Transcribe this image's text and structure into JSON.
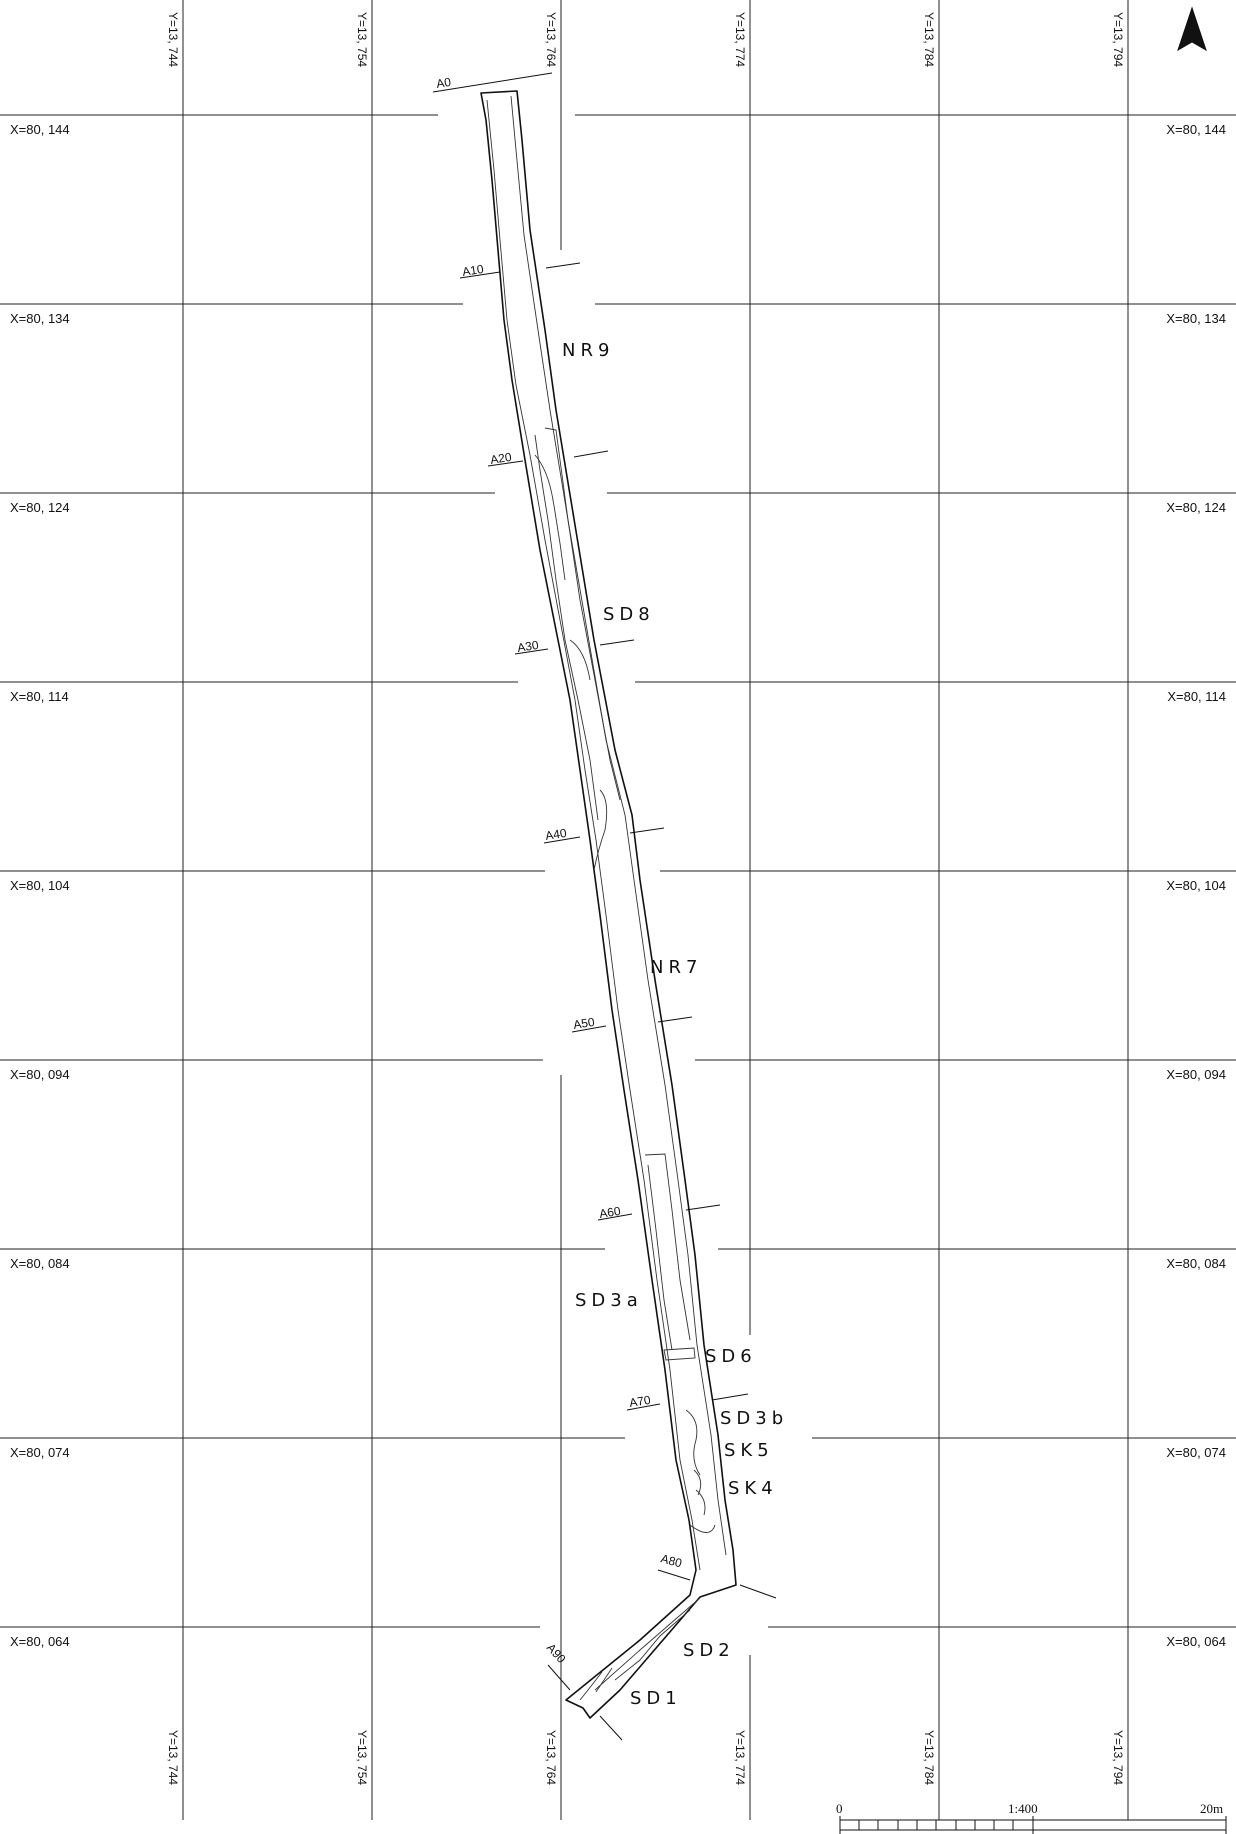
{
  "map": {
    "grid": {
      "x_labels": [
        "X=80, 144",
        "X=80, 134",
        "X=80, 124",
        "X=80, 114",
        "X=80, 104",
        "X=80, 094",
        "X=80, 084",
        "X=80, 074",
        "X=80, 064"
      ],
      "y_labels": [
        "Y=13, 744",
        "Y=13, 754",
        "Y=13, 764",
        "Y=13, 774",
        "Y=13, 784",
        "Y=13, 794"
      ]
    },
    "sections": [
      "A0",
      "A10",
      "A20",
      "A30",
      "A40",
      "A50",
      "A60",
      "A70",
      "A80",
      "A90"
    ],
    "features": [
      "NR9",
      "SD8",
      "NR7",
      "SD3a",
      "SD6",
      "SD3b",
      "SK5",
      "SK4",
      "SD2",
      "SD1"
    ],
    "north_arrow": "north-arrow-icon",
    "scale_bar": {
      "start_label": "0",
      "ratio_label": "1:400",
      "end_label": "20m"
    }
  }
}
